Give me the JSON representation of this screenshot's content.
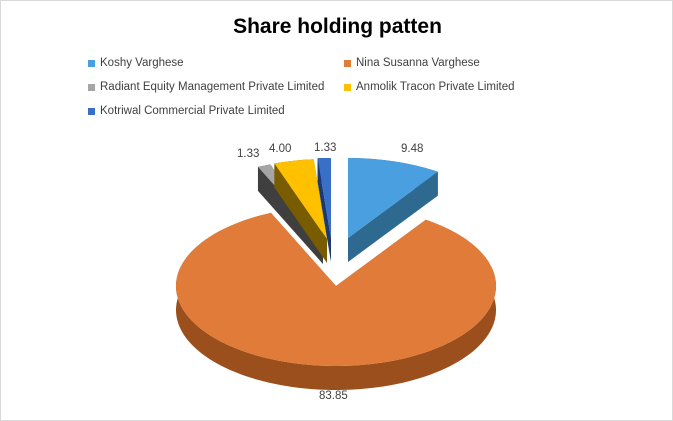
{
  "chart_data": {
    "type": "pie",
    "style": "3d-exploded",
    "title": "Share holding patten",
    "legend_position": "top",
    "slices": [
      {
        "name": "Koshy Varghese",
        "value": 9.48,
        "label": "9.48",
        "color": "#4a9fe0",
        "side": "#2e6a90"
      },
      {
        "name": "Nina Susanna Varghese",
        "value": 83.85,
        "label": "83.85",
        "color": "#e07b39",
        "side": "#9a4f1c"
      },
      {
        "name": "Radiant Equity Management Private Limited",
        "value": 1.33,
        "label": "1.33",
        "color": "#a5a5a5",
        "side": "#3f3f3f"
      },
      {
        "name": "Anmolik Tracon Private Limited",
        "value": 4.0,
        "label": "4.00",
        "color": "#ffc000",
        "side": "#7a5c00"
      },
      {
        "name": "Kotriwal Commercial Private Limited",
        "value": 1.33,
        "label": "1.33",
        "color": "#3a6fc8",
        "side": "#1c3a70"
      }
    ]
  }
}
